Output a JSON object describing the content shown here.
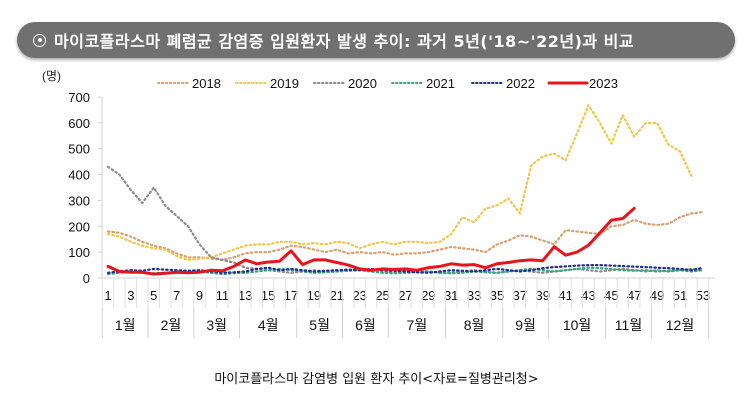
{
  "title": "마이코플라스마 폐렴균 감염증 입원환자 발생 추이: 과거 5년('18~'22년)과 비교",
  "title_icon": "target-circle-icon",
  "caption": "마이코플라스마 감염병 입원 환자 추이<자료=질병관리청>",
  "chart_data": {
    "type": "line",
    "ylabel": "(명)",
    "ylim": [
      0,
      700
    ],
    "yticks": [
      "0",
      "100",
      "200",
      "300",
      "400",
      "500",
      "600",
      "700"
    ],
    "xlim": [
      1,
      53
    ],
    "xticks": [
      "1",
      "3",
      "5",
      "7",
      "9",
      "11",
      "13",
      "15",
      "17",
      "19",
      "21",
      "23",
      "25",
      "27",
      "29",
      "31",
      "33",
      "35",
      "37",
      "39",
      "41",
      "43",
      "45",
      "47",
      "49",
      "51",
      "53"
    ],
    "months": [
      {
        "label": "1월",
        "weeks": [
          1,
          4
        ]
      },
      {
        "label": "2월",
        "weeks": [
          5,
          8
        ]
      },
      {
        "label": "3월",
        "weeks": [
          9,
          12
        ]
      },
      {
        "label": "4월",
        "weeks": [
          13,
          17
        ]
      },
      {
        "label": "5월",
        "weeks": [
          18,
          21
        ]
      },
      {
        "label": "6월",
        "weeks": [
          22,
          25
        ]
      },
      {
        "label": "7월",
        "weeks": [
          26,
          30
        ]
      },
      {
        "label": "8월",
        "weeks": [
          31,
          35
        ]
      },
      {
        "label": "9월",
        "weeks": [
          36,
          39
        ]
      },
      {
        "label": "10월",
        "weeks": [
          40,
          44
        ]
      },
      {
        "label": "11월",
        "weeks": [
          45,
          48
        ]
      },
      {
        "label": "12월",
        "weeks": [
          49,
          53
        ]
      }
    ],
    "grid": false,
    "legend_position": "top",
    "series": [
      {
        "name": "2018",
        "color": "#d9a070",
        "style": "dotted",
        "values": [
          180,
          175,
          160,
          140,
          125,
          115,
          95,
          80,
          80,
          75,
          70,
          80,
          95,
          100,
          100,
          110,
          125,
          120,
          110,
          100,
          110,
          95,
          100,
          95,
          100,
          90,
          95,
          95,
          100,
          110,
          120,
          115,
          110,
          100,
          130,
          145,
          165,
          160,
          145,
          130,
          185,
          180,
          175,
          170,
          200,
          205,
          225,
          210,
          205,
          210,
          235,
          250,
          255
        ]
      },
      {
        "name": "2019",
        "color": "#f2c64a",
        "style": "dotted",
        "values": [
          170,
          160,
          140,
          125,
          115,
          110,
          85,
          70,
          75,
          80,
          95,
          110,
          125,
          130,
          130,
          140,
          140,
          130,
          135,
          130,
          140,
          135,
          115,
          130,
          140,
          130,
          140,
          140,
          135,
          140,
          170,
          235,
          215,
          268,
          281,
          307,
          250,
          436,
          470,
          481,
          455,
          560,
          668,
          600,
          520,
          630,
          547,
          599,
          599,
          515,
          490,
          395
        ]
      },
      {
        "name": "2020",
        "color": "#8c8c8c",
        "style": "dotted",
        "values": [
          430,
          400,
          340,
          290,
          350,
          280,
          240,
          200,
          130,
          80,
          70,
          60,
          40,
          35,
          30,
          25,
          20,
          25,
          30,
          25,
          25,
          30,
          35,
          30,
          25,
          20,
          25,
          30,
          25,
          20,
          20,
          25,
          30,
          25,
          20,
          25,
          30,
          25,
          20,
          25,
          30,
          35,
          30,
          25,
          30,
          35,
          30,
          25,
          30,
          25,
          30,
          35,
          30
        ]
      },
      {
        "name": "2021",
        "color": "#3aa57a",
        "style": "dotted",
        "values": [
          15,
          20,
          25,
          20,
          18,
          20,
          22,
          20,
          25,
          20,
          15,
          18,
          20,
          25,
          30,
          35,
          30,
          25,
          20,
          22,
          25,
          28,
          30,
          25,
          20,
          18,
          20,
          22,
          25,
          20,
          18,
          20,
          25,
          22,
          20,
          25,
          30,
          35,
          30,
          25,
          30,
          35,
          40,
          38,
          35,
          30,
          28,
          30,
          25,
          28,
          30,
          25,
          30
        ]
      },
      {
        "name": "2022",
        "color": "#1f2f8f",
        "style": "dotted",
        "values": [
          20,
          25,
          30,
          28,
          35,
          32,
          30,
          28,
          30,
          25,
          20,
          22,
          25,
          35,
          40,
          30,
          35,
          30,
          25,
          28,
          30,
          32,
          30,
          35,
          30,
          28,
          25,
          22,
          20,
          25,
          30,
          28,
          25,
          30,
          35,
          30,
          25,
          30,
          38,
          42,
          45,
          48,
          50,
          50,
          48,
          46,
          44,
          42,
          40,
          38,
          35,
          30,
          40
        ]
      },
      {
        "name": "2023",
        "color": "#e8141c",
        "style": "solid",
        "values": [
          45,
          25,
          22,
          22,
          15,
          18,
          22,
          20,
          22,
          30,
          28,
          45,
          70,
          55,
          62,
          65,
          105,
          52,
          70,
          70,
          60,
          50,
          35,
          30,
          35,
          33,
          35,
          30,
          40,
          45,
          55,
          50,
          52,
          40,
          55,
          60,
          67,
          70,
          67,
          121,
          88,
          100,
          127,
          175,
          224,
          230,
          269
        ]
      }
    ]
  }
}
